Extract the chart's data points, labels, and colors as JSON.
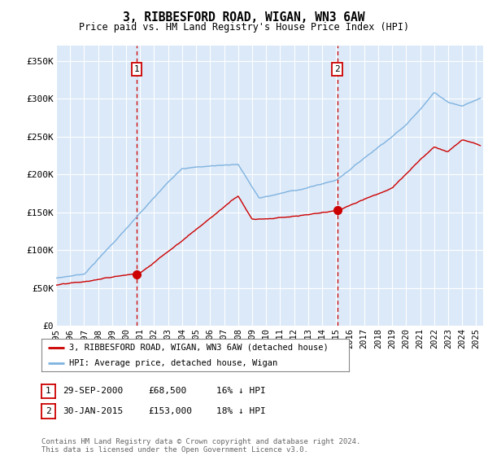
{
  "title": "3, RIBBESFORD ROAD, WIGAN, WN3 6AW",
  "subtitle": "Price paid vs. HM Land Registry's House Price Index (HPI)",
  "ylabel_ticks": [
    "£0",
    "£50K",
    "£100K",
    "£150K",
    "£200K",
    "£250K",
    "£300K",
    "£350K"
  ],
  "ytick_vals": [
    0,
    50000,
    100000,
    150000,
    200000,
    250000,
    300000,
    350000
  ],
  "ylim": [
    0,
    370000
  ],
  "xlim_start": 1995.0,
  "xlim_end": 2025.5,
  "plot_bg_color": "#dce9f8",
  "grid_color": "#ffffff",
  "hpi_color": "#7fb3e0",
  "price_color": "#cc0000",
  "sale1_x": 2000.75,
  "sale1_y": 68500,
  "sale2_x": 2015.08,
  "sale2_y": 153000,
  "legend_label1": "3, RIBBESFORD ROAD, WIGAN, WN3 6AW (detached house)",
  "legend_label2": "HPI: Average price, detached house, Wigan",
  "sale1_date": "29-SEP-2000",
  "sale1_price": "£68,500",
  "sale1_hpi": "16% ↓ HPI",
  "sale2_date": "30-JAN-2015",
  "sale2_price": "£153,000",
  "sale2_hpi": "18% ↓ HPI",
  "footer": "Contains HM Land Registry data © Crown copyright and database right 2024.\nThis data is licensed under the Open Government Licence v3.0."
}
